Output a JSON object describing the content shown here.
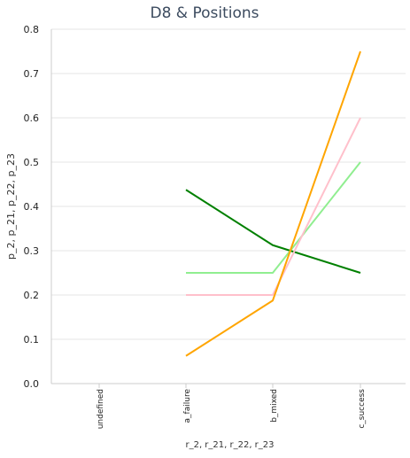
{
  "chart_data": {
    "type": "line",
    "title": "D8 & Positions",
    "xlabel": "r_2, r_21, r_22, r_23",
    "ylabel": "p_2, p_21, p_22, p_23",
    "categories": [
      "undefined",
      "a_failure",
      "b_mixed",
      "c_success"
    ],
    "ylim": [
      0,
      0.8
    ],
    "yticks": [
      "0.0",
      "0.1",
      "0.2",
      "0.3",
      "0.4",
      "0.5",
      "0.6",
      "0.7",
      "0.8"
    ],
    "grid": true,
    "legend": "none",
    "series": [
      {
        "color": "#008000",
        "values": [
          null,
          0.4375,
          0.3125,
          0.25
        ]
      },
      {
        "color": "#90ee90",
        "values": [
          null,
          0.25,
          0.25,
          0.5
        ]
      },
      {
        "color": "#ffc0cb",
        "values": [
          null,
          0.2,
          0.2,
          0.6
        ]
      },
      {
        "color": "#ffa500",
        "values": [
          null,
          0.0625,
          0.1875,
          0.75
        ]
      }
    ]
  }
}
